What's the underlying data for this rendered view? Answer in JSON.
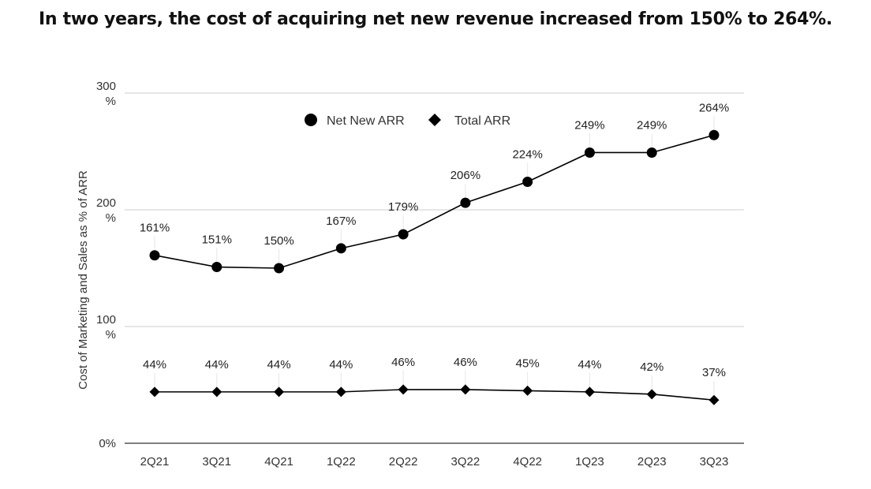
{
  "chart_data": {
    "type": "line",
    "title": "In two years, the cost of acquiring net new revenue increased from 150% to 264%.",
    "xlabel": "",
    "ylabel": "Cost of Marketing and Sales as % of ARR",
    "ylim": [
      0,
      300
    ],
    "yticks": [
      {
        "value": 0,
        "label": [
          "0%"
        ]
      },
      {
        "value": 100,
        "label": [
          "100",
          "%"
        ]
      },
      {
        "value": 200,
        "label": [
          "200",
          "%"
        ]
      },
      {
        "value": 300,
        "label": [
          "300",
          "%"
        ]
      }
    ],
    "grid": true,
    "legend_position": "top-center",
    "categories": [
      "2Q21",
      "3Q21",
      "4Q21",
      "1Q22",
      "2Q22",
      "3Q22",
      "4Q22",
      "1Q23",
      "2Q23",
      "3Q23"
    ],
    "series": [
      {
        "name": "Net New ARR",
        "marker": "circle",
        "color": "#000000",
        "values": [
          161,
          151,
          150,
          167,
          179,
          206,
          224,
          249,
          249,
          264
        ],
        "labels": [
          "161%",
          "151%",
          "150%",
          "167%",
          "179%",
          "206%",
          "224%",
          "249%",
          "249%",
          "264%"
        ]
      },
      {
        "name": "Total ARR",
        "marker": "diamond",
        "color": "#000000",
        "values": [
          44,
          44,
          44,
          44,
          46,
          46,
          45,
          44,
          42,
          37
        ],
        "labels": [
          "44%",
          "44%",
          "44%",
          "44%",
          "46%",
          "46%",
          "45%",
          "44%",
          "42%",
          "37%"
        ]
      }
    ]
  },
  "colors": {
    "gridline": "#cccccc",
    "axis": "#555555",
    "series": "#000000"
  }
}
